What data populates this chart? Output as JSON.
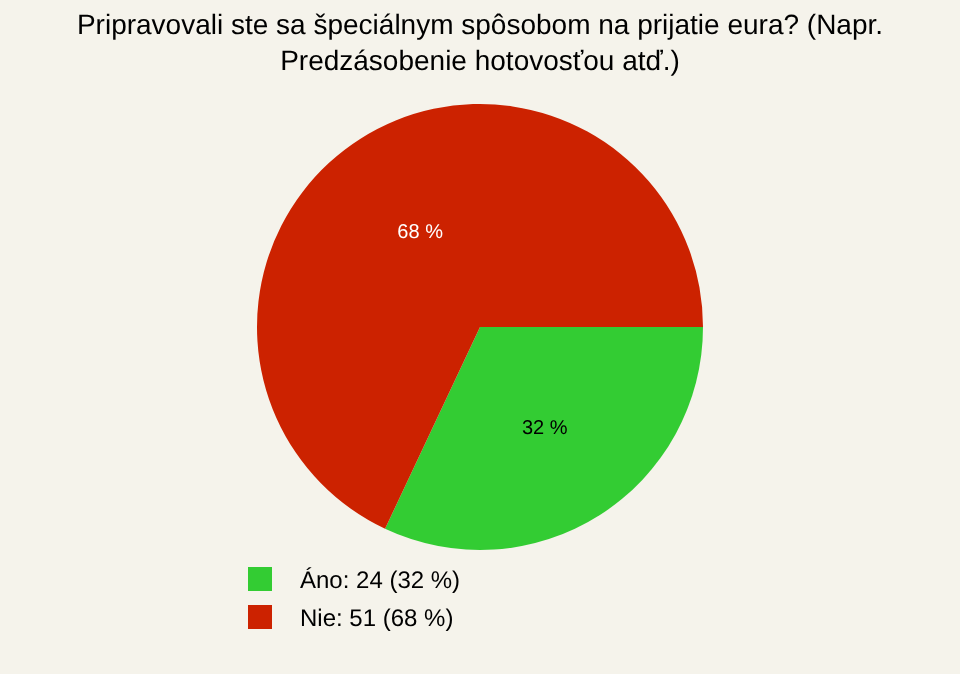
{
  "chart_data": {
    "type": "pie",
    "title": "Pripravovali ste sa špeciálnym spôsobom na prijatie eura? (Napr. Predzásobenie hotovosťou atď.)",
    "categories": [
      "Áno: 24 (32 %)",
      "Nie: 51 (68 %)"
    ],
    "values": [
      32,
      68
    ],
    "colors": [
      "#33cc33",
      "#cc2200"
    ],
    "value_labels": [
      "32 %",
      "68 %"
    ],
    "legend": "bottom left"
  }
}
